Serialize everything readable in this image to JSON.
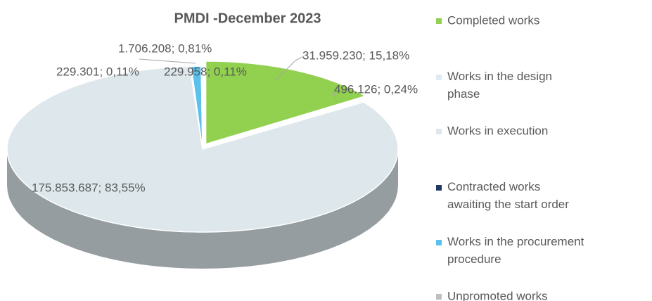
{
  "chart_data": {
    "type": "pie3d",
    "title": "PMDI -December 2023",
    "categories": [
      "Completed works",
      "Works in the design phase",
      "Works in execution",
      "Contracted works awaiting the start order",
      "Works in the procurement procedure",
      "Unpromoted works"
    ],
    "values": [
      31959230,
      496126,
      175853687,
      229301,
      1706208,
      229958
    ],
    "value_labels": [
      "31.959.230; 15,18%",
      "496.126; 0,24%",
      "175.853.687; 83,55%",
      "229.301; 0,11%",
      "1.706.208; 0,81%",
      "229.958; 0,11%"
    ],
    "colors": [
      "#92d050",
      "#ddebf7",
      "#dde7ec",
      "#1f3864",
      "#5bc0eb",
      "#bfbfbf"
    ],
    "legend": "right"
  }
}
